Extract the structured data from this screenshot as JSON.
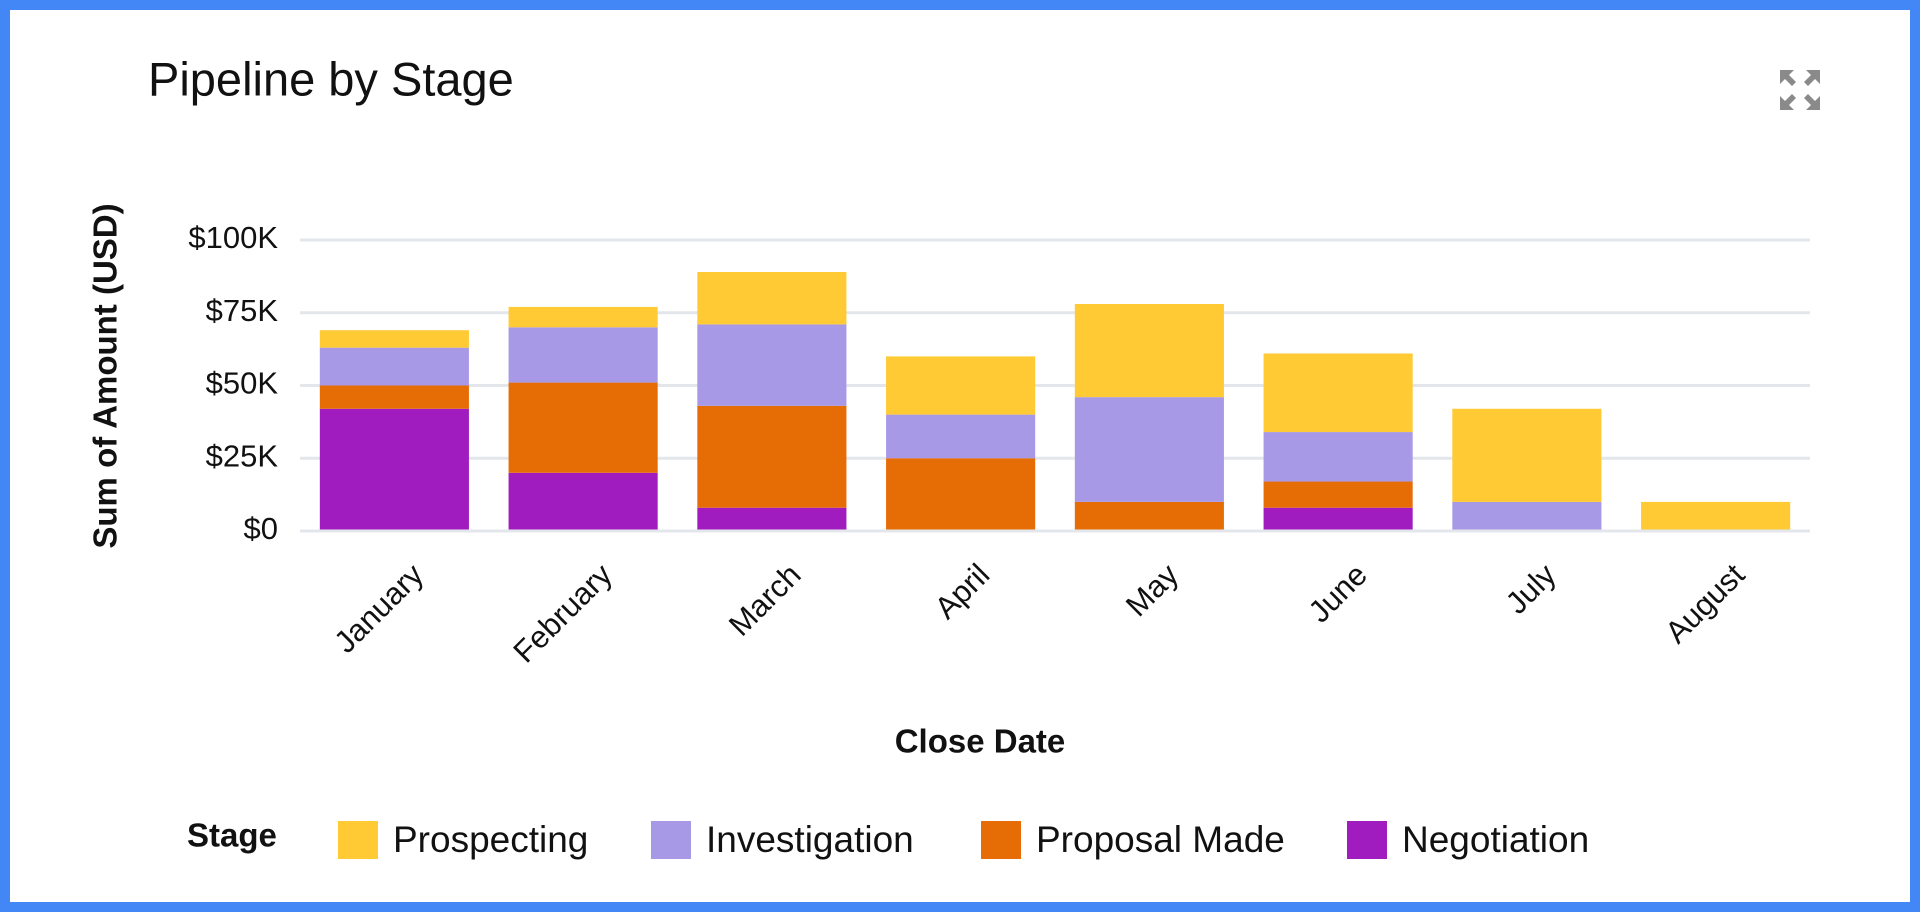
{
  "chart_data": {
    "type": "stacked-bar",
    "title": "Pipeline by Stage",
    "x_label": "Close Date",
    "y_label": "Sum of Amount (USD)",
    "legend_title": "Stage",
    "categories": [
      "January",
      "February",
      "March",
      "April",
      "May",
      "June",
      "July",
      "August"
    ],
    "series": [
      {
        "name": "Prospecting",
        "color": "#ffca33",
        "values": [
          6000,
          7000,
          18000,
          20000,
          32000,
          27000,
          32000,
          10000
        ]
      },
      {
        "name": "Investigation",
        "color": "#a899e6",
        "values": [
          13000,
          19000,
          28000,
          15000,
          36000,
          17000,
          10000,
          0
        ]
      },
      {
        "name": "Proposal Made",
        "color": "#e66d05",
        "values": [
          8000,
          31000,
          35000,
          25000,
          10000,
          9000,
          0,
          0
        ]
      },
      {
        "name": "Negotiation",
        "color": "#a01cbf",
        "values": [
          42000,
          20000,
          8000,
          0,
          0,
          8000,
          0,
          0
        ]
      }
    ],
    "ylim": [
      0,
      100000
    ],
    "yticks": [
      {
        "value": 0,
        "label": "$0"
      },
      {
        "value": 25000,
        "label": "$25K"
      },
      {
        "value": 50000,
        "label": "$50K"
      },
      {
        "value": 75000,
        "label": "$75K"
      },
      {
        "value": 100000,
        "label": "$100K"
      }
    ],
    "grid": true
  }
}
